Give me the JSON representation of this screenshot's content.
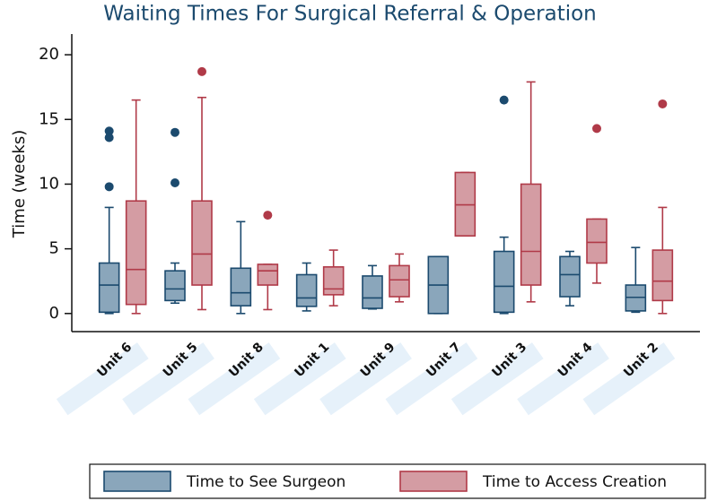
{
  "chart_data": {
    "type": "box",
    "title": "Waiting Times For Surgical Referral & Operation",
    "y_label": "Time (weeks)",
    "categories": [
      "Unit 6",
      "Unit 5",
      "Unit 8",
      "Unit 1",
      "Unit 9",
      "Unit 7",
      "Unit 3",
      "Unit 4",
      "Unit 2"
    ],
    "ylim": [
      -1.4,
      21.6
    ],
    "yticks": [
      0,
      5,
      10,
      15,
      20
    ],
    "grid": false,
    "legend": "bottom",
    "series": [
      {
        "name": "Time to See Surgeon",
        "color": "#8aa6bb",
        "edge": "#1b4a6e",
        "values": [
          {
            "min": 0,
            "q1": 0.1,
            "median": 2.2,
            "q3": 3.9,
            "max": 8.2,
            "outliers": [
              14.1,
              13.6,
              9.8
            ]
          },
          {
            "min": 0.8,
            "q1": 1.0,
            "median": 1.9,
            "q3": 3.3,
            "max": 3.9,
            "outliers": [
              14.0,
              10.1
            ]
          },
          {
            "min": 0,
            "q1": 0.6,
            "median": 1.6,
            "q3": 3.5,
            "max": 7.1,
            "outliers": []
          },
          {
            "min": 0.2,
            "q1": 0.55,
            "median": 1.2,
            "q3": 3.0,
            "max": 3.9,
            "outliers": []
          },
          {
            "min": 0.35,
            "q1": 0.4,
            "median": 1.2,
            "q3": 2.9,
            "max": 3.7,
            "outliers": []
          },
          {
            "min": 0,
            "q1": 0,
            "median": 2.2,
            "q3": 4.4,
            "max": 4.4,
            "outliers": []
          },
          {
            "min": 0,
            "q1": 0.1,
            "median": 2.1,
            "q3": 4.8,
            "max": 5.9,
            "outliers": [
              16.5
            ]
          },
          {
            "min": 0.6,
            "q1": 1.3,
            "median": 3.0,
            "q3": 4.4,
            "max": 4.8,
            "outliers": []
          },
          {
            "min": 0.1,
            "q1": 0.2,
            "median": 1.25,
            "q3": 2.2,
            "max": 5.1,
            "outliers": []
          }
        ]
      },
      {
        "name": "Time to Access Creation",
        "color": "#d49ca3",
        "edge": "#b03a48",
        "values": [
          {
            "min": 0,
            "q1": 0.7,
            "median": 3.4,
            "q3": 8.7,
            "max": 16.5,
            "outliers": []
          },
          {
            "min": 0.3,
            "q1": 2.2,
            "median": 4.6,
            "q3": 8.7,
            "max": 16.7,
            "outliers": [
              18.7
            ]
          },
          {
            "min": 0.3,
            "q1": 2.2,
            "median": 3.3,
            "q3": 3.8,
            "max": 3.8,
            "outliers": [
              7.6
            ]
          },
          {
            "min": 0.6,
            "q1": 1.45,
            "median": 1.9,
            "q3": 3.6,
            "max": 4.9,
            "outliers": []
          },
          {
            "min": 0.9,
            "q1": 1.3,
            "median": 2.6,
            "q3": 3.7,
            "max": 4.6,
            "outliers": []
          },
          {
            "min": 6.0,
            "q1": 6.0,
            "median": 8.4,
            "q3": 10.9,
            "max": 10.9,
            "outliers": []
          },
          {
            "min": 0.9,
            "q1": 2.2,
            "median": 4.8,
            "q3": 10.0,
            "max": 17.9,
            "outliers": []
          },
          {
            "min": 2.35,
            "q1": 3.9,
            "median": 5.5,
            "q3": 7.3,
            "max": 7.3,
            "outliers": [
              14.3
            ]
          },
          {
            "min": 0,
            "q1": 1.0,
            "median": 2.5,
            "q3": 4.9,
            "max": 8.2,
            "outliers": [
              16.2
            ]
          }
        ]
      }
    ]
  }
}
